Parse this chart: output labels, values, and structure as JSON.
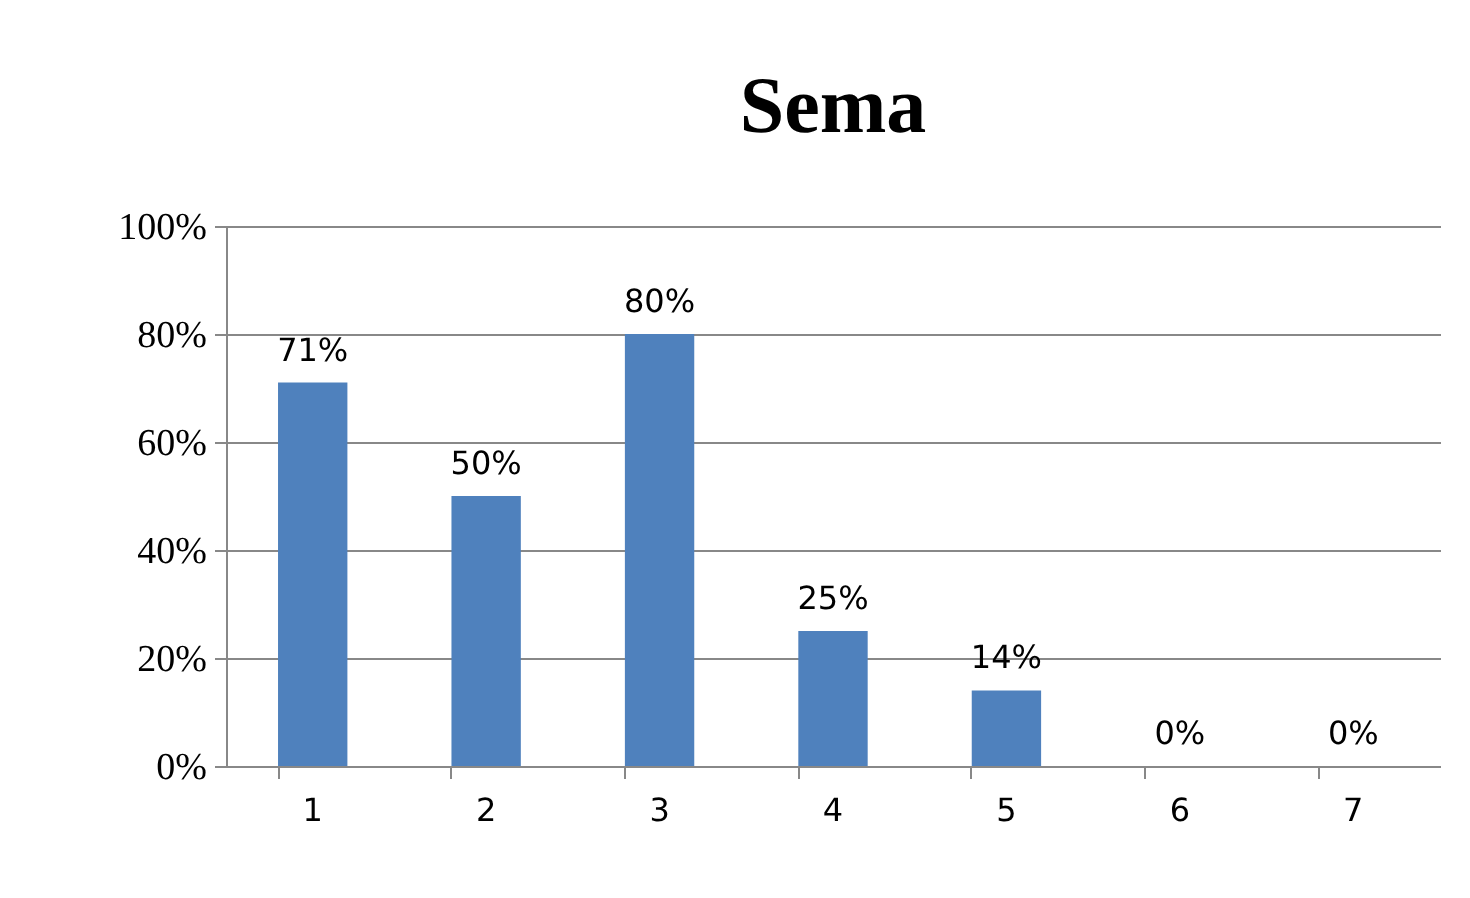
{
  "chart_data": {
    "type": "bar",
    "title": "Sema",
    "categories": [
      "1",
      "2",
      "3",
      "4",
      "5",
      "6",
      "7"
    ],
    "values": [
      71,
      50,
      80,
      25,
      14,
      0,
      0
    ],
    "value_labels": [
      "71%",
      "50%",
      "80%",
      "25%",
      "14%",
      "0%",
      "0%"
    ],
    "color": "#4f81bd",
    "ylim": [
      0,
      100
    ],
    "yticks": [
      {
        "value": 0,
        "label": "0%"
      },
      {
        "value": 20,
        "label": "20%"
      },
      {
        "value": 40,
        "label": "40%"
      },
      {
        "value": 60,
        "label": "60%"
      },
      {
        "value": 80,
        "label": "80%"
      },
      {
        "value": 100,
        "label": "100%"
      }
    ],
    "grid": "y"
  }
}
